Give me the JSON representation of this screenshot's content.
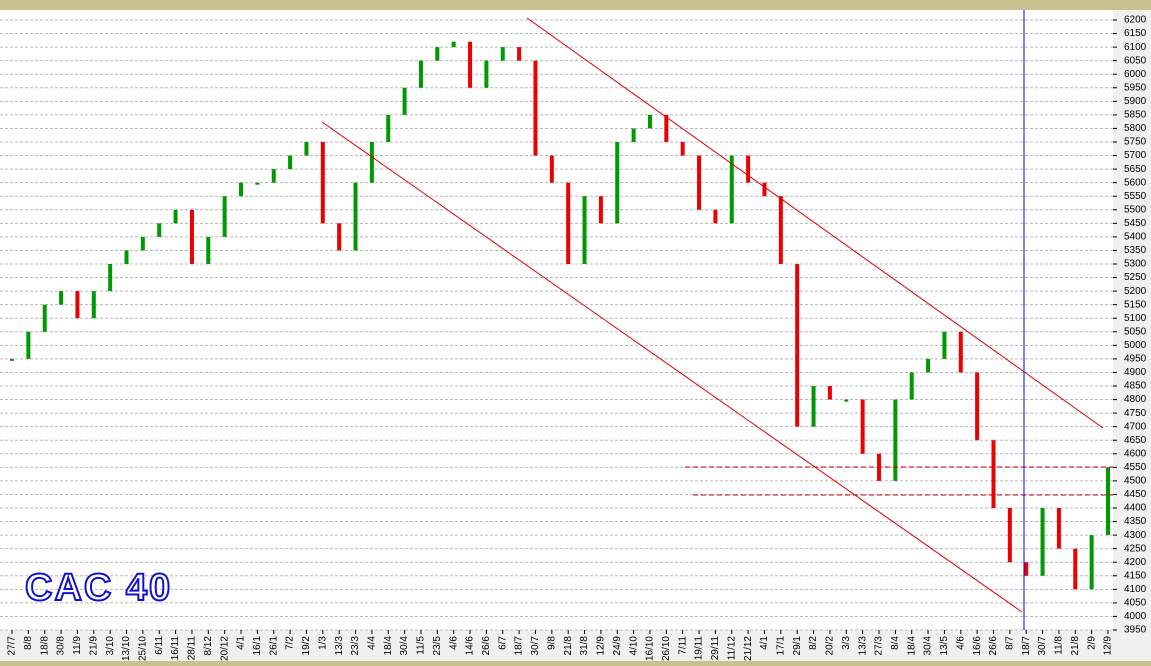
{
  "chart_data": {
    "type": "price-bars",
    "title": "CAC 40",
    "categories": [
      "27/7",
      "8/8",
      "18/8",
      "30/8",
      "11/9",
      "21/9",
      "3/10",
      "13/10",
      "25/10",
      "6/11",
      "16/11",
      "28/11",
      "8/12",
      "20/12",
      "4/1",
      "16/1",
      "26/1",
      "7/2",
      "19/2",
      "1/3",
      "13/3",
      "23/3",
      "4/4",
      "18/4",
      "30/4",
      "11/5",
      "23/5",
      "4/6",
      "14/6",
      "26/6",
      "6/7",
      "18/7",
      "30/7",
      "9/8",
      "21/8",
      "31/8",
      "12/9",
      "24/9",
      "4/10",
      "16/10",
      "26/10",
      "7/11",
      "19/11",
      "29/11",
      "11/12",
      "21/12",
      "4/1",
      "17/1",
      "29/1",
      "8/2",
      "20/2",
      "3/3",
      "13/3",
      "27/3",
      "8/4",
      "18/4",
      "30/4",
      "13/5",
      "4/6",
      "16/6",
      "26/6",
      "8/7",
      "18/7",
      "30/7",
      "11/8",
      "21/8",
      "2/9",
      "12/9"
    ],
    "values": [
      4950,
      5050,
      5150,
      5200,
      5100,
      5200,
      5300,
      5350,
      5400,
      5450,
      5500,
      5300,
      5400,
      5550,
      5600,
      5600,
      5650,
      5700,
      5750,
      5450,
      5350,
      5600,
      5750,
      5850,
      5950,
      6050,
      6100,
      6120,
      5950,
      6050,
      6100,
      6050,
      5700,
      5600,
      5300,
      5550,
      5450,
      5750,
      5800,
      5850,
      5750,
      5700,
      5500,
      5450,
      5700,
      5600,
      5550,
      5300,
      4700,
      4850,
      4800,
      4800,
      4600,
      4500,
      4800,
      4900,
      4950,
      5050,
      4900,
      4650,
      4400,
      4200,
      4150,
      4400,
      4250,
      4100,
      4300,
      4550
    ],
    "up_color": "#009900",
    "down_color": "#ee0000",
    "ylim": [
      3950,
      6200
    ],
    "yticks": [
      3950,
      4000,
      4050,
      4100,
      4150,
      4200,
      4250,
      4300,
      4350,
      4400,
      4450,
      4500,
      4550,
      4600,
      4650,
      4700,
      4750,
      4800,
      4850,
      4900,
      4950,
      5000,
      5050,
      5100,
      5150,
      5200,
      5250,
      5300,
      5350,
      5400,
      5450,
      5500,
      5550,
      5600,
      5650,
      5700,
      5750,
      5800,
      5850,
      5900,
      5950,
      6000,
      6050,
      6100,
      6150,
      6200
    ],
    "grid": true
  }
}
